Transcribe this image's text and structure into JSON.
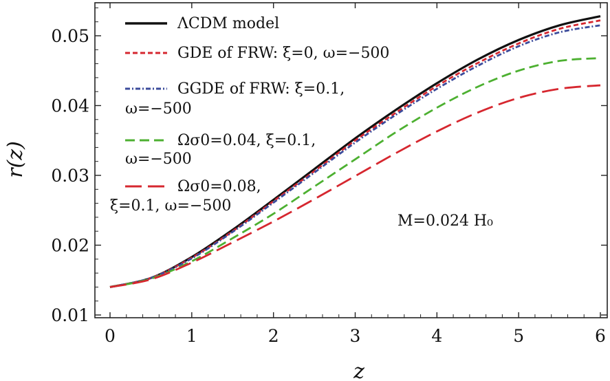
{
  "chart_data": {
    "type": "line",
    "title": "",
    "xlabel": "z",
    "ylabel": "r(z)",
    "xlim": [
      0,
      6
    ],
    "ylim": [
      0.01,
      0.055
    ],
    "xticks": [
      "0",
      "1",
      "2",
      "3",
      "4",
      "5",
      "6"
    ],
    "xtick_values": [
      0,
      1,
      2,
      3,
      4,
      5,
      6
    ],
    "yticks": [
      "0.01",
      "0.02",
      "0.03",
      "0.04",
      "0.05"
    ],
    "ytick_values": [
      0.01,
      0.02,
      0.03,
      0.04,
      0.05
    ],
    "grid": false,
    "legend_position": "top-left",
    "annotation": "M=0.024 H₀",
    "x": [
      0,
      0.5,
      1,
      1.5,
      2,
      2.5,
      3,
      3.5,
      4,
      4.5,
      5,
      5.5,
      6
    ],
    "series": [
      {
        "name": "ΛCDM model",
        "label_lines": [
          "ΛCDM model"
        ],
        "color": "#111111",
        "dash": "solid",
        "values": [
          0.014,
          0.0153,
          0.0183,
          0.0222,
          0.0265,
          0.0309,
          0.0353,
          0.0394,
          0.0432,
          0.0466,
          0.0494,
          0.0515,
          0.0528
        ]
      },
      {
        "name": "GDE of FRW: ξ=0, ω=−500",
        "label_lines": [
          "GDE of FRW: ξ=0, ω=−500"
        ],
        "color": "#d6272f",
        "dash": "short",
        "values": [
          0.014,
          0.0153,
          0.0182,
          0.022,
          0.0263,
          0.0306,
          0.035,
          0.039,
          0.0428,
          0.0461,
          0.0489,
          0.051,
          0.0522
        ]
      },
      {
        "name": "GGDE of FRW: ξ=0.1, ω=−500",
        "label_lines": [
          "GGDE of FRW: ξ=0.1,",
          "ω=−500"
        ],
        "color": "#3b4b9b",
        "dash": "dashdot",
        "values": [
          0.014,
          0.0153,
          0.0181,
          0.0219,
          0.0261,
          0.0304,
          0.0347,
          0.0387,
          0.0424,
          0.0457,
          0.0485,
          0.0505,
          0.0515
        ]
      },
      {
        "name": "Ωσ0=0.04, ξ=0.1, ω=−500",
        "label_lines": [
          "Ωσ0=0.04, ξ=0.1,",
          "ω=−500"
        ],
        "color": "#4db031",
        "dash": "medium",
        "values": [
          0.014,
          0.0152,
          0.0177,
          0.021,
          0.0245,
          0.0284,
          0.0323,
          0.0362,
          0.0397,
          0.0427,
          0.045,
          0.0464,
          0.0468
        ]
      },
      {
        "name": "Ωσ0=0.08, ξ=0.1, ω=−500",
        "label_lines": [
          "Ωσ0=0.08,",
          "ξ=0.1, ω=−500"
        ],
        "color": "#d6272f",
        "dash": "long",
        "values": [
          0.014,
          0.0151,
          0.0175,
          0.0204,
          0.0234,
          0.0266,
          0.0299,
          0.0332,
          0.0363,
          0.039,
          0.0411,
          0.0424,
          0.0429
        ]
      }
    ]
  }
}
